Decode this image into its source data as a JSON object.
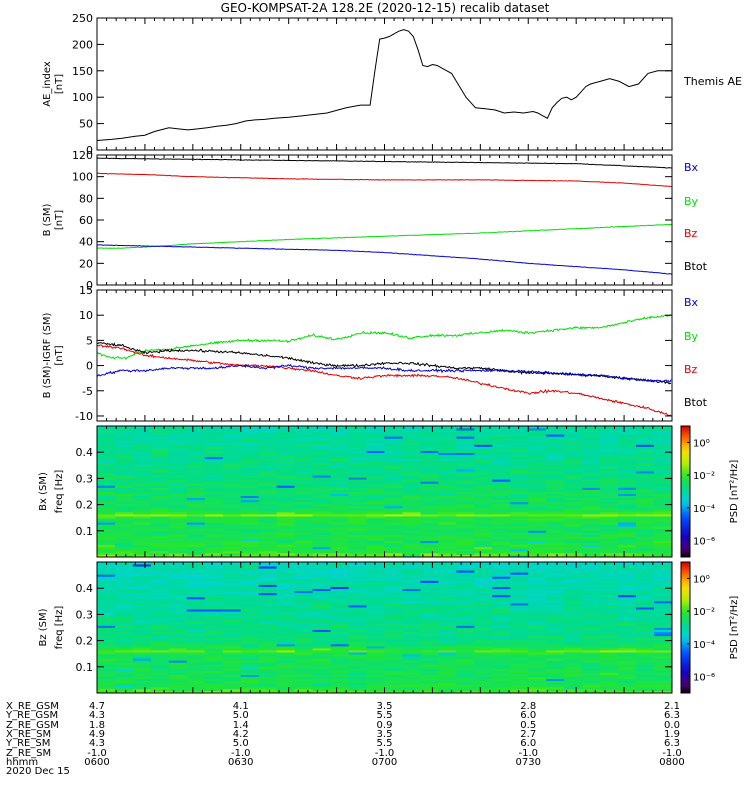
{
  "title": "GEO-KOMPSAT-2A 128.2E (2020-12-15) recalib dataset",
  "colors": {
    "Bx": "#0000cc",
    "By": "#00dd00",
    "Bz": "#dd0000",
    "Btot": "#000000",
    "AE": "#000000"
  },
  "chart_data": [
    {
      "type": "line",
      "title": "AE_index",
      "ylabel": "AE_index [nT]",
      "ylim": [
        0,
        250
      ],
      "yticks": [
        0,
        50,
        100,
        150,
        200,
        250
      ],
      "xlim": [
        0,
        120
      ],
      "legend": [
        "Themis AE"
      ],
      "series": [
        {
          "name": "Themis AE",
          "x": [
            0,
            3,
            5,
            8,
            10,
            12,
            15,
            17,
            19,
            21,
            23,
            25,
            27,
            29,
            31,
            33,
            35,
            37,
            40,
            43,
            45,
            48,
            50,
            52,
            55,
            57,
            58,
            59,
            60,
            61,
            62,
            63,
            64,
            65,
            66,
            67,
            68,
            69,
            70,
            71,
            72,
            73,
            74,
            75,
            77,
            79,
            81,
            83,
            85,
            87,
            89,
            91,
            92,
            93,
            94,
            95,
            96,
            97,
            98,
            99,
            100,
            101,
            102,
            103,
            105,
            107,
            109,
            111,
            113,
            115,
            117,
            119,
            120
          ],
          "y": [
            18,
            20,
            22,
            26,
            28,
            35,
            42,
            40,
            38,
            40,
            42,
            45,
            47,
            50,
            55,
            57,
            58,
            60,
            62,
            65,
            67,
            70,
            75,
            80,
            85,
            85,
            150,
            210,
            212,
            215,
            220,
            225,
            228,
            225,
            215,
            190,
            160,
            158,
            162,
            160,
            155,
            150,
            145,
            130,
            100,
            80,
            78,
            76,
            70,
            72,
            70,
            73,
            70,
            65,
            60,
            80,
            90,
            98,
            100,
            95,
            100,
            110,
            120,
            125,
            130,
            135,
            130,
            120,
            125,
            145,
            150,
            150,
            150
          ]
        }
      ]
    },
    {
      "type": "line",
      "title": "B (SM)",
      "ylabel": "B (SM) [nT]",
      "ylim": [
        0,
        120
      ],
      "yticks": [
        0,
        20,
        40,
        60,
        80,
        100,
        120
      ],
      "xlim": [
        0,
        120
      ],
      "legend": [
        "Bx",
        "By",
        "Bz",
        "Btot"
      ],
      "series": [
        {
          "name": "Btot",
          "x": [
            0,
            20,
            40,
            60,
            80,
            100,
            110,
            120
          ],
          "y": [
            117,
            116,
            115,
            114,
            113,
            112,
            110,
            108
          ]
        },
        {
          "name": "Bz",
          "x": [
            0,
            10,
            20,
            40,
            60,
            80,
            100,
            110,
            120
          ],
          "y": [
            103,
            102,
            100,
            98,
            97,
            97,
            96,
            94,
            91
          ]
        },
        {
          "name": "By",
          "x": [
            0,
            5,
            10,
            20,
            30,
            40,
            60,
            80,
            100,
            120
          ],
          "y": [
            34,
            34,
            35,
            38,
            40,
            42,
            45,
            48,
            52,
            56
          ]
        },
        {
          "name": "Bx",
          "x": [
            0,
            10,
            20,
            30,
            40,
            50,
            60,
            70,
            80,
            90,
            100,
            110,
            120
          ],
          "y": [
            37,
            36,
            35,
            34,
            33,
            32,
            30,
            27,
            24,
            20,
            17,
            14,
            10
          ]
        }
      ]
    },
    {
      "type": "line",
      "title": "B (SM)-IGRF (SM)",
      "ylabel": "B (SM)-IGRF (SM) [nT]",
      "ylim": [
        -11,
        15
      ],
      "yticks": [
        -10,
        -5,
        0,
        5,
        10,
        15
      ],
      "xlim": [
        0,
        120
      ],
      "legend": [
        "Bx",
        "By",
        "Bz",
        "Btot"
      ],
      "series": [
        {
          "name": "By",
          "x": [
            0,
            3,
            6,
            10,
            15,
            20,
            25,
            30,
            35,
            40,
            45,
            50,
            55,
            60,
            65,
            70,
            75,
            80,
            85,
            90,
            95,
            100,
            105,
            110,
            115,
            120
          ],
          "y": [
            2.5,
            1.5,
            1.5,
            3,
            3.2,
            4,
            4.5,
            5,
            5,
            4.8,
            6,
            5.2,
            6.5,
            6.5,
            5.5,
            6,
            6,
            6.5,
            7,
            6.5,
            7,
            7.5,
            7.5,
            8.5,
            9.5,
            10
          ]
        },
        {
          "name": "Btot",
          "x": [
            0,
            5,
            10,
            15,
            20,
            25,
            30,
            35,
            40,
            45,
            50,
            55,
            60,
            65,
            70,
            75,
            80,
            85,
            90,
            95,
            100,
            105,
            110,
            115,
            120
          ],
          "y": [
            4.5,
            4,
            2.5,
            3,
            3,
            2.8,
            2.5,
            2,
            1.5,
            0.5,
            0,
            0,
            0.5,
            0.5,
            0,
            -0.5,
            -0.5,
            -1,
            -1.5,
            -1.5,
            -1.8,
            -2,
            -2.5,
            -3,
            -3.5
          ]
        },
        {
          "name": "Bz",
          "x": [
            0,
            5,
            10,
            15,
            20,
            25,
            30,
            35,
            40,
            45,
            50,
            55,
            60,
            65,
            70,
            75,
            80,
            85,
            90,
            95,
            100,
            105,
            110,
            115,
            120
          ],
          "y": [
            4,
            3.5,
            2,
            1.5,
            1,
            0.5,
            0,
            0,
            -0.5,
            -1,
            -2,
            -2.5,
            -2,
            -2,
            -2,
            -2.5,
            -3.5,
            -4.5,
            -5.5,
            -5,
            -5.5,
            -6.5,
            -7.5,
            -8.5,
            -10
          ]
        },
        {
          "name": "Bx",
          "x": [
            0,
            5,
            10,
            15,
            20,
            25,
            30,
            35,
            40,
            45,
            50,
            55,
            60,
            65,
            70,
            75,
            80,
            85,
            90,
            95,
            100,
            105,
            110,
            115,
            120
          ],
          "y": [
            -2,
            -1,
            -1,
            -0.5,
            -0.5,
            -0.5,
            0,
            -0.5,
            0,
            -0.5,
            -0.5,
            -0.5,
            -0.5,
            -1,
            -1,
            -1,
            -1,
            -1,
            -1.2,
            -1.5,
            -1.8,
            -2,
            -2.5,
            -3,
            -3
          ]
        }
      ]
    },
    {
      "type": "heatmap",
      "title": "Bx (SM)",
      "ylabel": "freq [Hz]",
      "ylim": [
        0,
        0.5
      ],
      "yticks": [
        0.1,
        0.2,
        0.3,
        0.4
      ],
      "colorbar": {
        "label": "PSD [nT²/Hz]",
        "ticks": [
          "10⁰",
          "10⁻²",
          "10⁻⁴",
          "10⁻⁶"
        ],
        "log_range": [
          -7,
          1
        ]
      },
      "profile": {
        "freq": [
          0.0,
          0.02,
          0.1,
          0.15,
          0.16,
          0.17,
          0.18,
          0.2,
          0.3,
          0.4,
          0.5
        ],
        "log_psd": [
          -1.5,
          -2.2,
          -2.4,
          -2.3,
          -1.6,
          -2.1,
          -2.5,
          -2.5,
          -2.7,
          -2.9,
          -3.0
        ]
      }
    },
    {
      "type": "heatmap",
      "title": "Bz (SM)",
      "ylabel": "freq [Hz]",
      "ylim": [
        0,
        0.5
      ],
      "yticks": [
        0.1,
        0.2,
        0.3,
        0.4
      ],
      "colorbar": {
        "label": "PSD [nT²/Hz]",
        "ticks": [
          "10⁰",
          "10⁻²",
          "10⁻⁴",
          "10⁻⁶"
        ],
        "log_range": [
          -7,
          1
        ]
      },
      "profile": {
        "freq": [
          0.0,
          0.02,
          0.1,
          0.15,
          0.16,
          0.17,
          0.18,
          0.2,
          0.3,
          0.4,
          0.5
        ],
        "log_psd": [
          -1.7,
          -2.3,
          -2.5,
          -2.4,
          -1.8,
          -2.2,
          -2.6,
          -2.7,
          -2.9,
          -3.1,
          -3.2
        ]
      }
    }
  ],
  "ephemeris": {
    "positions_min": [
      0,
      30,
      60,
      90,
      120
    ],
    "rows": [
      {
        "label": "X_RE_GSM",
        "values": [
          "4.7",
          "4.1",
          "3.5",
          "2.8",
          "2.1"
        ]
      },
      {
        "label": "Y_RE_GSM",
        "values": [
          "4.3",
          "5.0",
          "5.5",
          "6.0",
          "6.3"
        ]
      },
      {
        "label": "Z_RE_GSM",
        "values": [
          "1.8",
          "1.4",
          "0.9",
          "0.5",
          "0.0"
        ]
      },
      {
        "label": "X_RE_SM",
        "values": [
          "4.9",
          "4.2",
          "3.5",
          "2.7",
          "1.9"
        ]
      },
      {
        "label": "Y_RE_SM",
        "values": [
          "4.3",
          "5.0",
          "5.5",
          "6.0",
          "6.3"
        ]
      },
      {
        "label": "Z_RE_SM",
        "values": [
          "-1.0",
          "-1.0",
          "-1.0",
          "-1.0",
          "-1.0"
        ]
      },
      {
        "label": "hhmm",
        "values": [
          "0600",
          "0630",
          "0700",
          "0730",
          "0800"
        ]
      }
    ],
    "date": "2020 Dec 15"
  }
}
